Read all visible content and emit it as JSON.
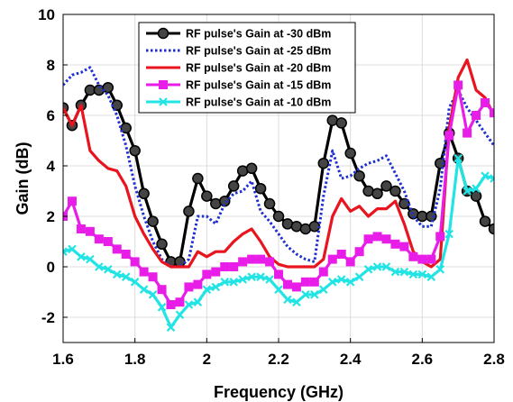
{
  "chart_data": {
    "type": "line",
    "title": "",
    "xlabel": "Frequency (GHz)",
    "ylabel": "Gain (dB)",
    "xlim": [
      1.6,
      2.8
    ],
    "ylim": [
      -3,
      10
    ],
    "xticks": [
      "1.6",
      "1.8",
      "2",
      "2.2",
      "2.4",
      "2.6",
      "2.8"
    ],
    "yticks": [
      "-2",
      "0",
      "2",
      "4",
      "6",
      "8",
      "10"
    ],
    "grid": true,
    "legend_position": "top-center",
    "series": [
      {
        "name": "RF pulse's Gain at -30 dBm",
        "color": "#000000",
        "style": "solid",
        "marker": "circle",
        "x": [
          1.6,
          1.625,
          1.65,
          1.675,
          1.7,
          1.725,
          1.75,
          1.775,
          1.8,
          1.825,
          1.85,
          1.875,
          1.9,
          1.925,
          1.95,
          1.975,
          2.0,
          2.025,
          2.05,
          2.075,
          2.1,
          2.125,
          2.15,
          2.175,
          2.2,
          2.225,
          2.25,
          2.275,
          2.3,
          2.325,
          2.35,
          2.375,
          2.4,
          2.425,
          2.45,
          2.475,
          2.5,
          2.525,
          2.55,
          2.575,
          2.6,
          2.625,
          2.65,
          2.675,
          2.7,
          2.725,
          2.75,
          2.775,
          2.8
        ],
        "values": [
          6.3,
          5.6,
          6.4,
          7.0,
          7.0,
          7.1,
          6.4,
          5.5,
          4.6,
          2.9,
          1.8,
          0.9,
          0.2,
          0.2,
          2.2,
          3.5,
          2.8,
          2.5,
          2.6,
          3.2,
          3.8,
          3.9,
          3.1,
          2.5,
          2.0,
          1.7,
          1.6,
          1.5,
          1.6,
          4.1,
          5.8,
          5.7,
          4.5,
          3.6,
          3.0,
          2.9,
          3.2,
          3.0,
          2.5,
          2.1,
          2.0,
          2.0,
          4.1,
          5.3,
          4.3,
          3.0,
          2.8,
          1.8,
          1.5
        ]
      },
      {
        "name": "RF pulse's Gain at -25 dBm",
        "color": "#1f2fd0",
        "style": "dotted",
        "marker": "none",
        "x": [
          1.6,
          1.625,
          1.65,
          1.675,
          1.7,
          1.725,
          1.75,
          1.775,
          1.8,
          1.825,
          1.85,
          1.875,
          1.9,
          1.925,
          1.95,
          1.975,
          2.0,
          2.025,
          2.05,
          2.075,
          2.1,
          2.125,
          2.15,
          2.175,
          2.2,
          2.225,
          2.25,
          2.275,
          2.3,
          2.325,
          2.35,
          2.375,
          2.4,
          2.425,
          2.45,
          2.475,
          2.5,
          2.525,
          2.55,
          2.575,
          2.6,
          2.625,
          2.65,
          2.675,
          2.7,
          2.725,
          2.75,
          2.775,
          2.8
        ],
        "values": [
          7.2,
          7.6,
          7.7,
          7.9,
          7.2,
          6.8,
          6.0,
          4.8,
          3.2,
          2.0,
          1.0,
          0.3,
          0.0,
          0.0,
          0.3,
          2.0,
          2.0,
          1.7,
          2.5,
          2.9,
          3.0,
          3.4,
          2.2,
          1.8,
          1.3,
          0.8,
          0.5,
          0.3,
          0.2,
          2.8,
          4.6,
          3.5,
          3.6,
          3.9,
          4.1,
          4.2,
          4.4,
          3.7,
          3.0,
          2.0,
          1.6,
          1.6,
          3.1,
          6.3,
          7.0,
          6.3,
          5.8,
          5.3,
          4.8
        ]
      },
      {
        "name": "RF pulse's Gain at -20 dBm",
        "color": "#e8141e",
        "style": "solid",
        "marker": "none",
        "x": [
          1.6,
          1.625,
          1.65,
          1.675,
          1.7,
          1.725,
          1.75,
          1.775,
          1.8,
          1.825,
          1.85,
          1.875,
          1.9,
          1.925,
          1.95,
          1.975,
          2.0,
          2.025,
          2.05,
          2.075,
          2.1,
          2.125,
          2.15,
          2.175,
          2.2,
          2.225,
          2.25,
          2.275,
          2.3,
          2.325,
          2.35,
          2.375,
          2.4,
          2.425,
          2.45,
          2.475,
          2.5,
          2.525,
          2.55,
          2.575,
          2.6,
          2.625,
          2.65,
          2.675,
          2.7,
          2.725,
          2.75,
          2.775,
          2.8
        ],
        "values": [
          6.3,
          5.6,
          6.4,
          4.6,
          4.2,
          3.9,
          3.8,
          3.2,
          2.0,
          1.3,
          0.7,
          0.2,
          0.0,
          0.0,
          0.0,
          0.6,
          0.4,
          0.6,
          0.6,
          1.0,
          1.3,
          1.5,
          1.0,
          0.4,
          0.1,
          0.0,
          0.0,
          0.0,
          0.0,
          0.3,
          2.0,
          2.7,
          2.2,
          2.4,
          2.0,
          2.3,
          2.3,
          2.6,
          1.7,
          0.6,
          0.2,
          0.0,
          0.3,
          5.5,
          7.5,
          8.2,
          7.0,
          6.7,
          6.0
        ]
      },
      {
        "name": "RF pulse's Gain at -15 dBm",
        "color": "#e81ee8",
        "style": "solid",
        "marker": "square",
        "x": [
          1.6,
          1.625,
          1.65,
          1.675,
          1.7,
          1.725,
          1.75,
          1.775,
          1.8,
          1.825,
          1.85,
          1.875,
          1.9,
          1.925,
          1.95,
          1.975,
          2.0,
          2.025,
          2.05,
          2.075,
          2.1,
          2.125,
          2.15,
          2.175,
          2.2,
          2.225,
          2.25,
          2.275,
          2.3,
          2.325,
          2.35,
          2.375,
          2.4,
          2.425,
          2.45,
          2.475,
          2.5,
          2.525,
          2.55,
          2.575,
          2.6,
          2.625,
          2.65,
          2.675,
          2.7,
          2.725,
          2.75,
          2.775,
          2.8
        ],
        "values": [
          2.0,
          2.6,
          1.5,
          1.4,
          1.1,
          1.0,
          0.7,
          0.5,
          0.2,
          -0.2,
          -0.4,
          -0.9,
          -1.5,
          -1.4,
          -0.8,
          -0.7,
          -0.3,
          -0.2,
          0.0,
          0.0,
          0.2,
          0.3,
          0.3,
          0.2,
          -0.3,
          -0.7,
          -0.8,
          -0.6,
          -0.6,
          -0.2,
          0.3,
          0.5,
          0.2,
          0.6,
          1.1,
          1.2,
          1.1,
          0.9,
          0.8,
          0.4,
          0.3,
          0.3,
          1.2,
          5.2,
          7.2,
          5.3,
          6.0,
          6.5,
          6.1
        ]
      },
      {
        "name": "RF pulse's Gain at -10 dBm",
        "color": "#22e4e4",
        "style": "solid",
        "marker": "x",
        "x": [
          1.6,
          1.625,
          1.65,
          1.675,
          1.7,
          1.725,
          1.75,
          1.775,
          1.8,
          1.825,
          1.85,
          1.875,
          1.9,
          1.925,
          1.95,
          1.975,
          2.0,
          2.025,
          2.05,
          2.075,
          2.1,
          2.125,
          2.15,
          2.175,
          2.2,
          2.225,
          2.25,
          2.275,
          2.3,
          2.325,
          2.35,
          2.375,
          2.4,
          2.425,
          2.45,
          2.475,
          2.5,
          2.525,
          2.55,
          2.575,
          2.6,
          2.625,
          2.65,
          2.675,
          2.7,
          2.725,
          2.75,
          2.775,
          2.8
        ],
        "values": [
          0.6,
          0.7,
          0.4,
          0.3,
          0.0,
          -0.1,
          -0.3,
          -0.4,
          -0.6,
          -0.9,
          -1.1,
          -1.6,
          -2.4,
          -1.9,
          -1.5,
          -1.4,
          -0.9,
          -0.8,
          -0.6,
          -0.6,
          -0.5,
          -0.4,
          -0.4,
          -0.5,
          -0.9,
          -1.3,
          -1.4,
          -1.1,
          -1.1,
          -0.9,
          -0.6,
          -0.5,
          -0.6,
          -0.4,
          -0.1,
          0.0,
          0.0,
          -0.2,
          -0.2,
          -0.3,
          -0.3,
          -0.4,
          -0.1,
          1.3,
          4.3,
          3.0,
          3.1,
          3.6,
          3.5
        ]
      }
    ]
  }
}
